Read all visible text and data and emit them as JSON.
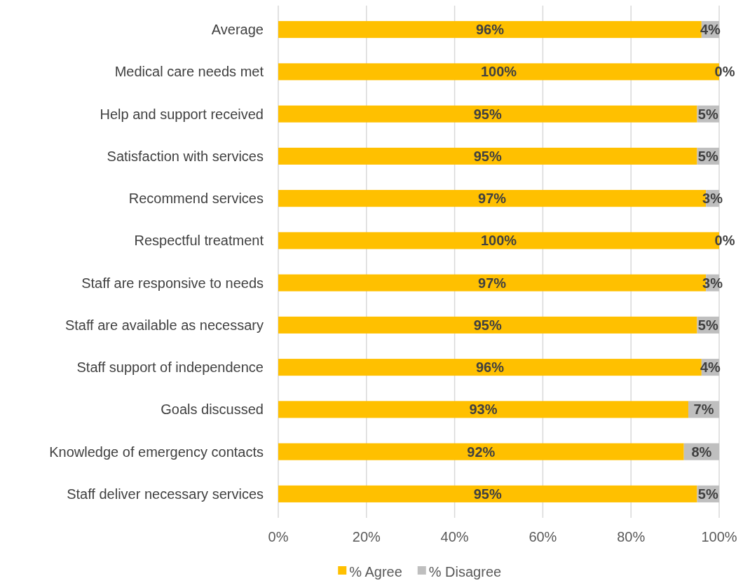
{
  "chart_data": {
    "type": "bar",
    "orientation": "horizontal",
    "stacked": true,
    "categories": [
      "Average",
      "Medical care needs met",
      "Help and support received",
      "Satisfaction with services",
      "Recommend services",
      "Respectful treatment",
      "Staff are responsive to needs",
      "Staff are available as necessary",
      "Staff support of independence",
      "Goals discussed",
      "Knowledge of emergency contacts",
      "Staff deliver necessary services"
    ],
    "series": [
      {
        "name": "% Agree",
        "color": "#ffc000",
        "values": [
          96,
          100,
          95,
          95,
          97,
          100,
          97,
          95,
          96,
          93,
          92,
          95
        ],
        "value_labels": [
          "96%",
          "100%",
          "95%",
          "95%",
          "97%",
          "100%",
          "97%",
          "95%",
          "96%",
          "93%",
          "92%",
          "95%"
        ]
      },
      {
        "name": "% Disagree",
        "color": "#bfbfbf",
        "values": [
          4,
          0,
          5,
          5,
          3,
          0,
          3,
          5,
          4,
          7,
          8,
          5
        ],
        "value_labels": [
          "4%",
          "0%",
          "5%",
          "5%",
          "3%",
          "0%",
          "3%",
          "5%",
          "4%",
          "7%",
          "8%",
          "5%"
        ]
      }
    ],
    "xlim": [
      0,
      100
    ],
    "xticks": [
      {
        "value": 0,
        "label": "0%"
      },
      {
        "value": 20,
        "label": "20%"
      },
      {
        "value": 40,
        "label": "40%"
      },
      {
        "value": 60,
        "label": "60%"
      },
      {
        "value": 80,
        "label": "80%"
      },
      {
        "value": 100,
        "label": "100%"
      }
    ],
    "grid": "x",
    "legend": "bottom"
  }
}
